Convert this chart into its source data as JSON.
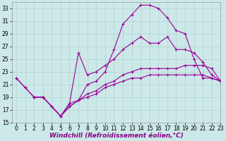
{
  "xlabel": "Windchill (Refroidissement éolien,°C)",
  "bg_color": "#cce8e8",
  "line_color": "#990099",
  "ylim": [
    15,
    34
  ],
  "xlim": [
    -0.5,
    23
  ],
  "yticks": [
    15,
    17,
    19,
    21,
    23,
    25,
    27,
    29,
    31,
    33
  ],
  "xticks": [
    0,
    1,
    2,
    3,
    4,
    5,
    6,
    7,
    8,
    9,
    10,
    11,
    12,
    13,
    14,
    15,
    16,
    17,
    18,
    19,
    20,
    21,
    22,
    23
  ],
  "grid_color": "#b0d4d0",
  "tick_fontsize": 5.5,
  "label_fontsize": 6.5,
  "line1_x": [
    0,
    1,
    2,
    3,
    4,
    5,
    6,
    7,
    8,
    9,
    10,
    11,
    12,
    13,
    14,
    15,
    16,
    17,
    18,
    19,
    20,
    21,
    22,
    23
  ],
  "line1_y": [
    22.0,
    20.5,
    19.0,
    19.0,
    17.5,
    16.0,
    18.0,
    18.5,
    21.0,
    21.5,
    23.0,
    26.5,
    30.5,
    32.0,
    33.5,
    33.5,
    33.0,
    31.5,
    29.5,
    29.0,
    25.0,
    22.0,
    22.0,
    21.5
  ],
  "line2_x": [
    0,
    1,
    2,
    3,
    4,
    5,
    6,
    7,
    8,
    9,
    10,
    11,
    12,
    13,
    14,
    15,
    16,
    17,
    18,
    19,
    20,
    21,
    22,
    23
  ],
  "line2_y": [
    22.0,
    20.5,
    19.0,
    19.0,
    17.5,
    16.0,
    18.0,
    26.0,
    22.5,
    23.0,
    24.0,
    25.0,
    26.5,
    27.5,
    28.5,
    27.5,
    27.5,
    28.5,
    26.5,
    26.5,
    26.0,
    24.5,
    22.5,
    21.5
  ],
  "line3_x": [
    2,
    3,
    5,
    6,
    7,
    8,
    9,
    10,
    11,
    12,
    13,
    14,
    15,
    16,
    17,
    18,
    19,
    20,
    21,
    22,
    23
  ],
  "line3_y": [
    19.0,
    19.0,
    16.0,
    17.5,
    18.5,
    19.5,
    20.0,
    21.0,
    21.5,
    22.5,
    23.0,
    23.5,
    23.5,
    23.5,
    23.5,
    23.5,
    24.0,
    24.0,
    24.0,
    23.5,
    21.5
  ],
  "line4_x": [
    2,
    3,
    5,
    6,
    7,
    8,
    9,
    10,
    11,
    12,
    13,
    14,
    15,
    16,
    17,
    18,
    19,
    20,
    21,
    22,
    23
  ],
  "line4_y": [
    19.0,
    19.0,
    16.0,
    17.5,
    18.5,
    19.0,
    19.5,
    20.5,
    21.0,
    21.5,
    22.0,
    22.0,
    22.5,
    22.5,
    22.5,
    22.5,
    22.5,
    22.5,
    22.5,
    22.0,
    21.5
  ]
}
